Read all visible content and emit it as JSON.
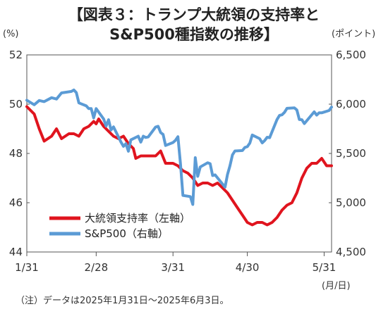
{
  "chart_data": {
    "type": "line",
    "title_line1": "【図表３：トランプ大統領の支持率と",
    "title_line2": "S&P500種指数の推移】",
    "left_unit": "(%)",
    "right_unit": "(ポイント)",
    "x_unit": "(月/日)",
    "note": "（注）データは2025年1月31日～2025年6月3日。",
    "x_range": [
      "2025-01-31",
      "2025-06-03"
    ],
    "x_ticks": [
      {
        "date": "2025-01-31",
        "label": "1/31"
      },
      {
        "date": "2025-02-28",
        "label": "2/28"
      },
      {
        "date": "2025-03-31",
        "label": "3/31"
      },
      {
        "date": "2025-04-30",
        "label": "4/30"
      },
      {
        "date": "2025-05-31",
        "label": "5/31"
      }
    ],
    "y_left": {
      "min": 44,
      "max": 52,
      "ticks": [
        "44",
        "46",
        "48",
        "50",
        "52"
      ]
    },
    "y_right": {
      "min": 4500,
      "max": 6500,
      "ticks": [
        "4,500",
        "5,000",
        "5,500",
        "6,000",
        "6,500"
      ]
    },
    "legend_placement": "bottom-left",
    "series": [
      {
        "name": "大統領支持率（左軸）",
        "axis": "left",
        "color": "#e0141e",
        "points": [
          [
            "2025-01-31",
            49.9
          ],
          [
            "2025-02-03",
            49.6
          ],
          [
            "2025-02-05",
            49.0
          ],
          [
            "2025-02-07",
            48.5
          ],
          [
            "2025-02-10",
            48.7
          ],
          [
            "2025-02-12",
            49.0
          ],
          [
            "2025-02-14",
            48.6
          ],
          [
            "2025-02-17",
            48.8
          ],
          [
            "2025-02-19",
            48.8
          ],
          [
            "2025-02-21",
            48.7
          ],
          [
            "2025-02-23",
            49.0
          ],
          [
            "2025-02-25",
            49.1
          ],
          [
            "2025-02-27",
            49.3
          ],
          [
            "2025-02-28",
            49.2
          ],
          [
            "2025-03-01",
            49.4
          ],
          [
            "2025-03-03",
            49.1
          ],
          [
            "2025-03-05",
            48.9
          ],
          [
            "2025-03-07",
            48.7
          ],
          [
            "2025-03-09",
            48.6
          ],
          [
            "2025-03-11",
            48.7
          ],
          [
            "2025-03-13",
            48.4
          ],
          [
            "2025-03-15",
            48.2
          ],
          [
            "2025-03-16",
            47.8
          ],
          [
            "2025-03-18",
            47.9
          ],
          [
            "2025-03-21",
            47.9
          ],
          [
            "2025-03-24",
            47.9
          ],
          [
            "2025-03-26",
            48.1
          ],
          [
            "2025-03-28",
            47.6
          ],
          [
            "2025-03-31",
            47.6
          ],
          [
            "2025-04-02",
            47.5
          ],
          [
            "2025-04-04",
            47.3
          ],
          [
            "2025-04-06",
            47.2
          ],
          [
            "2025-04-08",
            47.0
          ],
          [
            "2025-04-10",
            46.7
          ],
          [
            "2025-04-12",
            46.8
          ],
          [
            "2025-04-14",
            46.8
          ],
          [
            "2025-04-16",
            46.7
          ],
          [
            "2025-04-18",
            46.8
          ],
          [
            "2025-04-20",
            46.6
          ],
          [
            "2025-04-22",
            46.4
          ],
          [
            "2025-04-24",
            46.1
          ],
          [
            "2025-04-26",
            45.8
          ],
          [
            "2025-04-28",
            45.5
          ],
          [
            "2025-04-30",
            45.2
          ],
          [
            "2025-05-02",
            45.1
          ],
          [
            "2025-05-04",
            45.2
          ],
          [
            "2025-05-06",
            45.2
          ],
          [
            "2025-05-08",
            45.1
          ],
          [
            "2025-05-10",
            45.2
          ],
          [
            "2025-05-12",
            45.4
          ],
          [
            "2025-05-14",
            45.7
          ],
          [
            "2025-05-16",
            45.9
          ],
          [
            "2025-05-18",
            46.0
          ],
          [
            "2025-05-20",
            46.4
          ],
          [
            "2025-05-22",
            47.0
          ],
          [
            "2025-05-24",
            47.4
          ],
          [
            "2025-05-26",
            47.6
          ],
          [
            "2025-05-28",
            47.6
          ],
          [
            "2025-05-30",
            47.8
          ],
          [
            "2025-06-01",
            47.5
          ],
          [
            "2025-06-03",
            47.5
          ]
        ]
      },
      {
        "name": "S&P500（右軸）",
        "axis": "right",
        "color": "#5b9bd5",
        "points": [
          [
            "2025-01-31",
            6040
          ],
          [
            "2025-02-03",
            5994
          ],
          [
            "2025-02-05",
            6037
          ],
          [
            "2025-02-07",
            6026
          ],
          [
            "2025-02-10",
            6066
          ],
          [
            "2025-02-12",
            6052
          ],
          [
            "2025-02-14",
            6114
          ],
          [
            "2025-02-18",
            6129
          ],
          [
            "2025-02-19",
            6144
          ],
          [
            "2025-02-20",
            6117
          ],
          [
            "2025-02-21",
            6013
          ],
          [
            "2025-02-24",
            5983
          ],
          [
            "2025-02-25",
            5955
          ],
          [
            "2025-02-26",
            5956
          ],
          [
            "2025-02-27",
            5861
          ],
          [
            "2025-02-28",
            5955
          ],
          [
            "2025-03-03",
            5850
          ],
          [
            "2025-03-04",
            5778
          ],
          [
            "2025-03-05",
            5842
          ],
          [
            "2025-03-06",
            5738
          ],
          [
            "2025-03-07",
            5770
          ],
          [
            "2025-03-10",
            5615
          ],
          [
            "2025-03-11",
            5572
          ],
          [
            "2025-03-12",
            5599
          ],
          [
            "2025-03-13",
            5522
          ],
          [
            "2025-03-14",
            5638
          ],
          [
            "2025-03-17",
            5675
          ],
          [
            "2025-03-18",
            5615
          ],
          [
            "2025-03-19",
            5675
          ],
          [
            "2025-03-20",
            5662
          ],
          [
            "2025-03-21",
            5667
          ],
          [
            "2025-03-24",
            5768
          ],
          [
            "2025-03-25",
            5776
          ],
          [
            "2025-03-26",
            5712
          ],
          [
            "2025-03-27",
            5693
          ],
          [
            "2025-03-28",
            5581
          ],
          [
            "2025-03-31",
            5611
          ],
          [
            "2025-04-01",
            5633
          ],
          [
            "2025-04-02",
            5670
          ],
          [
            "2025-04-03",
            5397
          ],
          [
            "2025-04-04",
            5074
          ],
          [
            "2025-04-07",
            5062
          ],
          [
            "2025-04-08",
            4982
          ],
          [
            "2025-04-09",
            5457
          ],
          [
            "2025-04-10",
            5268
          ],
          [
            "2025-04-11",
            5363
          ],
          [
            "2025-04-14",
            5406
          ],
          [
            "2025-04-15",
            5396
          ],
          [
            "2025-04-16",
            5276
          ],
          [
            "2025-04-17",
            5283
          ],
          [
            "2025-04-21",
            5158
          ],
          [
            "2025-04-22",
            5287
          ],
          [
            "2025-04-23",
            5376
          ],
          [
            "2025-04-24",
            5485
          ],
          [
            "2025-04-25",
            5525
          ],
          [
            "2025-04-28",
            5529
          ],
          [
            "2025-04-29",
            5561
          ],
          [
            "2025-04-30",
            5569
          ],
          [
            "2025-05-01",
            5604
          ],
          [
            "2025-05-02",
            5687
          ],
          [
            "2025-05-05",
            5650
          ],
          [
            "2025-05-06",
            5607
          ],
          [
            "2025-05-07",
            5631
          ],
          [
            "2025-05-08",
            5664
          ],
          [
            "2025-05-09",
            5660
          ],
          [
            "2025-05-12",
            5844
          ],
          [
            "2025-05-13",
            5886
          ],
          [
            "2025-05-14",
            5892
          ],
          [
            "2025-05-15",
            5917
          ],
          [
            "2025-05-16",
            5958
          ],
          [
            "2025-05-19",
            5963
          ],
          [
            "2025-05-20",
            5941
          ],
          [
            "2025-05-21",
            5845
          ],
          [
            "2025-05-22",
            5842
          ],
          [
            "2025-05-23",
            5803
          ],
          [
            "2025-05-27",
            5922
          ],
          [
            "2025-05-28",
            5889
          ],
          [
            "2025-05-29",
            5913
          ],
          [
            "2025-05-30",
            5912
          ],
          [
            "2025-06-02",
            5936
          ],
          [
            "2025-06-03",
            5971
          ]
        ]
      }
    ]
  }
}
